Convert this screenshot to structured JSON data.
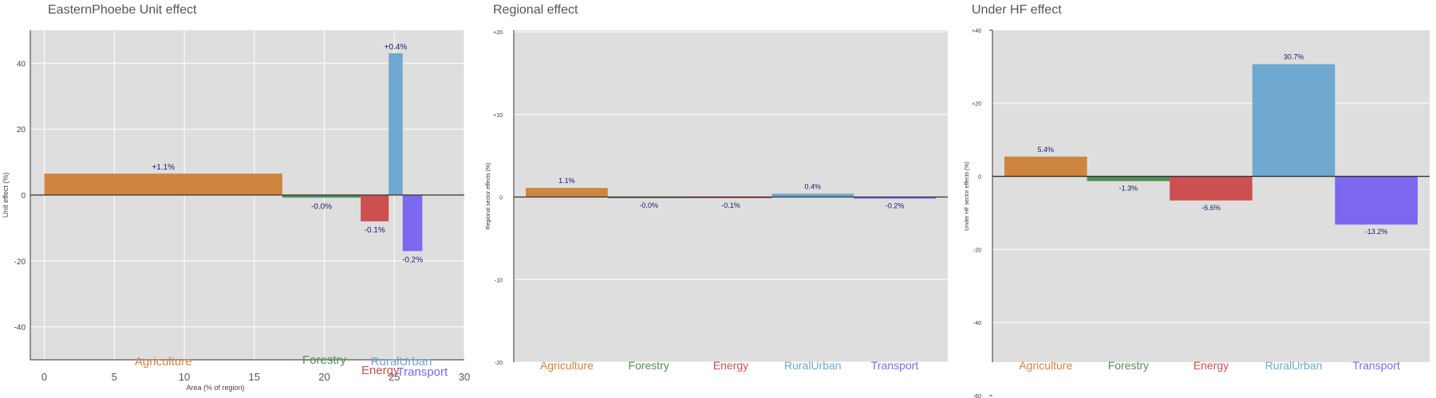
{
  "colors": {
    "panel_bg": "#dedede",
    "gridline": "#ffffff",
    "zero_line": "#333333",
    "bar_label": "#1a1a6e",
    "axis_text": "#444444",
    "Agriculture": "#cd853f",
    "Forestry": "#558b55",
    "Energy": "#cd5050",
    "RuralUrban": "#6fa8d0",
    "Transport": "#7b68ee"
  },
  "chart_data": [
    {
      "type": "bar",
      "title": "EasternPhoebe Unit effect",
      "xlabel": "Area (% of region)",
      "ylabel": "Unit effect (%)",
      "x_ticks": [
        "0",
        "5",
        "10",
        "15",
        "20",
        "25",
        "30"
      ],
      "xlim": [
        -1,
        30
      ],
      "y_ticks": [
        "40",
        "20",
        "0",
        "-20",
        "-40"
      ],
      "ylim": [
        -50,
        50
      ],
      "grid": true,
      "bars": [
        {
          "sector": "Agriculture",
          "x_start": 0,
          "width": 17,
          "value": 6.5,
          "label": "+1.1%"
        },
        {
          "sector": "Forestry",
          "x_start": 17,
          "width": 5.6,
          "value": -0.8,
          "label": "-0.0%"
        },
        {
          "sector": "Energy",
          "x_start": 22.6,
          "width": 2,
          "value": -8,
          "label": "-0.1%"
        },
        {
          "sector": "RuralUrban",
          "x_start": 24.6,
          "width": 1,
          "value": 43,
          "label": "+0.4%"
        },
        {
          "sector": "Transport",
          "x_start": 25.6,
          "width": 1.4,
          "value": -17,
          "label": "-0.2%"
        }
      ],
      "category_labels": [
        "Agriculture",
        "Forestry",
        "Energy",
        "RuralUrban",
        "Transport"
      ]
    },
    {
      "type": "bar",
      "title": "Regional effect",
      "xlabel": "",
      "ylabel": "Regional sector effects (%)",
      "y_ticks": [
        "+20",
        "+10",
        "0",
        "-10",
        "-20"
      ],
      "ylim": [
        -20,
        20
      ],
      "grid": true,
      "categories": [
        "Agriculture",
        "Forestry",
        "Energy",
        "RuralUrban",
        "Transport"
      ],
      "values": [
        1.1,
        -0.02,
        -0.1,
        0.4,
        -0.2
      ],
      "bar_labels": [
        "1.1%",
        "-0.0%",
        "-0.1%",
        "0.4%",
        "-0.2%"
      ]
    },
    {
      "type": "bar",
      "title": "Under HF effect",
      "xlabel": "",
      "ylabel": "Under HF sector effects (%)",
      "y_ticks": [
        "+40",
        "+20",
        "0",
        "-20",
        "-40",
        "-60"
      ],
      "ylim": [
        -60,
        50
      ],
      "grid": true,
      "categories": [
        "Agriculture",
        "Forestry",
        "Energy",
        "RuralUrban",
        "Transport"
      ],
      "values": [
        5.4,
        -1.3,
        -6.6,
        30.7,
        -13.2
      ],
      "bar_labels": [
        "5.4%",
        "-1.3%",
        "-6.6%",
        "30.7%",
        "-13.2%"
      ]
    }
  ]
}
